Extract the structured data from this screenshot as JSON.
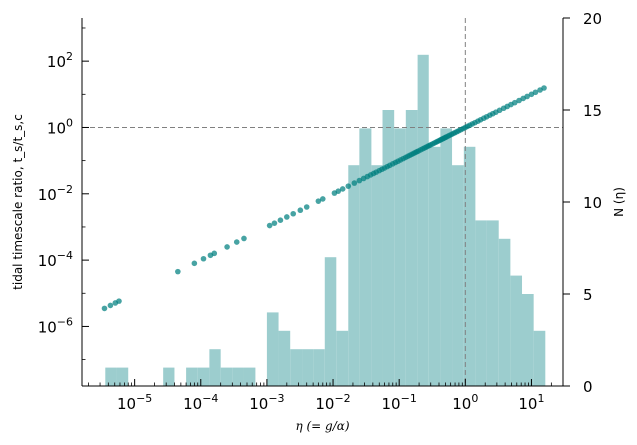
{
  "chart_data": {
    "type": "scatter",
    "x_scale": "log",
    "y_scale": "log",
    "xlim": [
      1.6e-06,
      30
    ],
    "ylim": [
      1.6e-08,
      2000
    ],
    "y2lim": [
      0,
      20
    ],
    "xlabel": "η (= g/α)",
    "ylabel": "tidal timescale ratio, t_s/t_s,c",
    "y2label": "N (η)",
    "x_ticks": [
      {
        "value": 1e-05,
        "base": "10",
        "exp": "−5"
      },
      {
        "value": 0.0001,
        "base": "10",
        "exp": "−4"
      },
      {
        "value": 0.001,
        "base": "10",
        "exp": "−3"
      },
      {
        "value": 0.01,
        "base": "10",
        "exp": "−2"
      },
      {
        "value": 0.1,
        "base": "10",
        "exp": "−1"
      },
      {
        "value": 1,
        "base": "10",
        "exp": "0"
      },
      {
        "value": 10,
        "base": "10",
        "exp": "1"
      }
    ],
    "y_ticks": [
      {
        "value": 1e-06,
        "base": "10",
        "exp": "−6"
      },
      {
        "value": 0.0001,
        "base": "10",
        "exp": "−4"
      },
      {
        "value": 0.01,
        "base": "10",
        "exp": "−2"
      },
      {
        "value": 1,
        "base": "10",
        "exp": "0"
      },
      {
        "value": 100,
        "base": "10",
        "exp": "2"
      }
    ],
    "y2_ticks": [
      "0",
      "5",
      "10",
      "15",
      "20"
    ],
    "reference_lines": {
      "x": 1,
      "y": 1,
      "style": "dashed",
      "color": "#808080"
    },
    "scatter": {
      "name": "",
      "color": "#008080",
      "relation": "y = x",
      "x": [
        3.5e-06,
        4.3e-06,
        5.1e-06,
        5.8e-06,
        4.5e-05,
        8e-05,
        0.00011,
        0.00014,
        0.00016,
        0.00025,
        0.00035,
        0.00045,
        0.0011,
        0.0013,
        0.0016,
        0.002,
        0.0025,
        0.0032,
        0.004,
        0.006,
        0.007,
        0.0105,
        0.012,
        0.014,
        0.017,
        0.021,
        0.025,
        0.029,
        0.033,
        0.037,
        0.041,
        0.045,
        0.05,
        0.055,
        0.06,
        0.066,
        0.072,
        0.08,
        0.088,
        0.096,
        0.105,
        0.115,
        0.125,
        0.135,
        0.145,
        0.155,
        0.165,
        0.175,
        0.185,
        0.195,
        0.21,
        0.225,
        0.24,
        0.255,
        0.27,
        0.285,
        0.3,
        0.32,
        0.34,
        0.36,
        0.38,
        0.4,
        0.42,
        0.44,
        0.46,
        0.48,
        0.5,
        0.52,
        0.55,
        0.58,
        0.62,
        0.66,
        0.7,
        0.75,
        0.8,
        0.86,
        0.93,
        1.0,
        1.08,
        1.17,
        1.28,
        1.4,
        1.55,
        1.7,
        1.9,
        2.1,
        2.35,
        2.6,
        2.9,
        3.3,
        3.8,
        4.3,
        4.9,
        5.6,
        6.5,
        7.5,
        8.6,
        10,
        11.5,
        13.5,
        15.5
      ],
      "y": [
        3.5e-06,
        4.3e-06,
        5.1e-06,
        5.8e-06,
        4.5e-05,
        8e-05,
        0.00011,
        0.00014,
        0.00016,
        0.00025,
        0.00035,
        0.00045,
        0.0011,
        0.0013,
        0.0016,
        0.002,
        0.0025,
        0.0032,
        0.004,
        0.006,
        0.007,
        0.0105,
        0.012,
        0.014,
        0.017,
        0.021,
        0.025,
        0.029,
        0.033,
        0.037,
        0.041,
        0.045,
        0.05,
        0.055,
        0.06,
        0.066,
        0.072,
        0.08,
        0.088,
        0.096,
        0.105,
        0.115,
        0.125,
        0.135,
        0.145,
        0.155,
        0.165,
        0.175,
        0.185,
        0.195,
        0.21,
        0.225,
        0.24,
        0.255,
        0.27,
        0.285,
        0.3,
        0.32,
        0.34,
        0.36,
        0.38,
        0.4,
        0.42,
        0.44,
        0.46,
        0.48,
        0.5,
        0.52,
        0.55,
        0.58,
        0.62,
        0.66,
        0.7,
        0.75,
        0.8,
        0.86,
        0.93,
        1.0,
        1.08,
        1.17,
        1.28,
        1.4,
        1.55,
        1.7,
        1.9,
        2.1,
        2.35,
        2.6,
        2.9,
        3.3,
        3.8,
        4.3,
        4.9,
        5.6,
        6.5,
        7.5,
        8.6,
        10,
        11.5,
        13.5,
        15.5
      ]
    },
    "histogram": {
      "axis": "right",
      "color": "#9ccdce",
      "bin_edges": [
        3.6e-06,
        5.4e-06,
        8e-06,
        1.2e-05,
        1.8e-05,
        2.7e-05,
        4e-05,
        6e-05,
        9e-05,
        0.000135,
        0.0002,
        0.0003,
        0.00045,
        0.00067,
        0.001,
        0.0015,
        0.00225,
        0.0034,
        0.005,
        0.0075,
        0.0112,
        0.017,
        0.025,
        0.038,
        0.056,
        0.084,
        0.126,
        0.19,
        0.28,
        0.42,
        0.63,
        0.95,
        1.42,
        2.12,
        3.2,
        4.8,
        7.2,
        10.8,
        16.2
      ],
      "counts": [
        1,
        1,
        0,
        0,
        0,
        1,
        0,
        1,
        1,
        2,
        1,
        1,
        1,
        0,
        4,
        3,
        2,
        2,
        2,
        7,
        3,
        12,
        14,
        12,
        15,
        14,
        15,
        18,
        13,
        14,
        12,
        13,
        9,
        9,
        8,
        6,
        5,
        3
      ]
    }
  }
}
